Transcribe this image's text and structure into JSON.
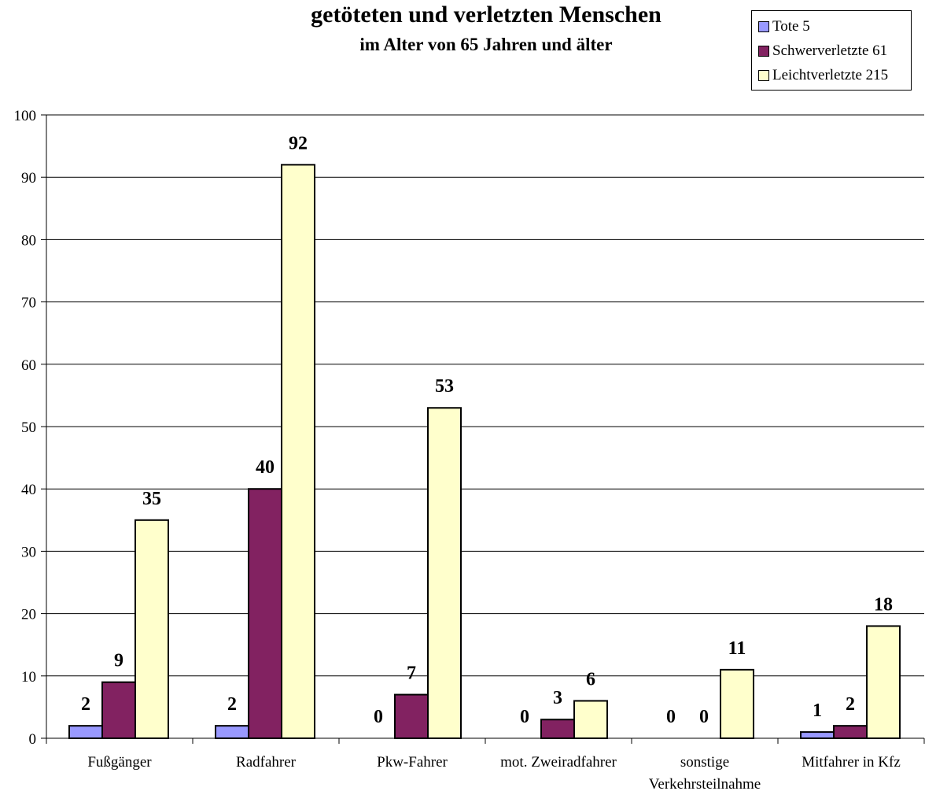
{
  "chart_data": {
    "type": "bar",
    "title": "getöteten und verletzten Menschen",
    "subtitle": "im Alter von 65 Jahren und älter",
    "categories": [
      "Fußgänger",
      "Radfahrer",
      "Pkw-Fahrer",
      "mot. Zweiradfahrer",
      "sonstige Verkehrsteilnahme",
      "Mitfahrer in Kfz"
    ],
    "category_lines": [
      [
        "Fußgänger"
      ],
      [
        "Radfahrer"
      ],
      [
        "Pkw-Fahrer"
      ],
      [
        "mot. Zweiradfahrer"
      ],
      [
        "sonstige",
        "Verkehrsteilnahme"
      ],
      [
        "Mitfahrer in Kfz"
      ]
    ],
    "series": [
      {
        "name": "Tote 5",
        "color": "#9999ff",
        "values": [
          2,
          2,
          0,
          0,
          0,
          1
        ]
      },
      {
        "name": "Schwerverletzte 61",
        "color": "#822261",
        "values": [
          9,
          40,
          7,
          3,
          0,
          2
        ]
      },
      {
        "name": "Leichtverletzte 215",
        "color": "#ffffcc",
        "values": [
          35,
          92,
          53,
          6,
          11,
          18
        ]
      }
    ],
    "ylim": [
      0,
      100
    ],
    "yticks": [
      0,
      10,
      20,
      30,
      40,
      50,
      60,
      70,
      80,
      90,
      100
    ],
    "grid": true,
    "legend_position": "top-right",
    "data_labels": true
  }
}
